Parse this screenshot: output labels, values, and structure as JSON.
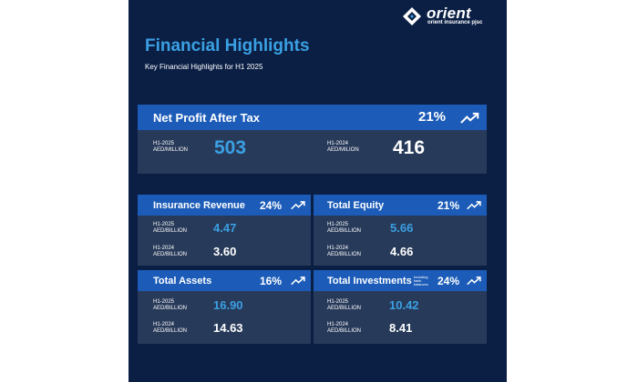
{
  "brand": {
    "name": "orient",
    "sub": "orient insurance pjsc",
    "icon": "orient-logo-icon"
  },
  "header": {
    "title": "Financial Highlights",
    "subtitle": "Key Financial Highlights for H1 2025"
  },
  "net_profit": {
    "label": "Net Profit After Tax",
    "change": "21%",
    "icon": "trend-up-icon",
    "current": {
      "period": "H1-2025",
      "unit": "AED/MILLION",
      "value": "503"
    },
    "previous": {
      "period": "H1-2024",
      "unit": "AED/MILION",
      "value": "416"
    }
  },
  "insurance_revenue": {
    "label": "Insurance Revenue",
    "change": "24%",
    "icon": "trend-up-icon",
    "current": {
      "period": "H1-2025",
      "unit": "AED/BILLION",
      "value": "4.47"
    },
    "previous": {
      "period": "H1-2024",
      "unit": "AED/BILLION",
      "value": "3.60"
    }
  },
  "total_equity": {
    "label": "Total Equity",
    "change": "21%",
    "icon": "trend-up-icon",
    "current": {
      "period": "H1-2025",
      "unit": "AED/BILLION",
      "value": "5.66"
    },
    "previous": {
      "period": "H1-2024",
      "unit": "AED/BILLION",
      "value": "4.66"
    }
  },
  "total_assets": {
    "label": "Total Assets",
    "change": "16%",
    "icon": "trend-up-icon",
    "current": {
      "period": "H1-2025",
      "unit": "AED/BILLION",
      "value": "16.90"
    },
    "previous": {
      "period": "H1-2024",
      "unit": "AED/BILLION",
      "value": "14.63"
    }
  },
  "total_investments": {
    "label": "Total Investments",
    "note": "including bank balances",
    "change": "24%",
    "icon": "trend-up-icon",
    "current": {
      "period": "H1-2025",
      "unit": "AED/BILLION",
      "value": "10.42"
    },
    "previous": {
      "period": "H1-2024",
      "unit": "AED/BILLION",
      "value": "8.41"
    }
  },
  "colors": {
    "background": "#0b1f45",
    "card": "#283a5a",
    "header_bar": "#1c5cb8",
    "accent": "#3aa0e3",
    "text": "#ffffff"
  }
}
